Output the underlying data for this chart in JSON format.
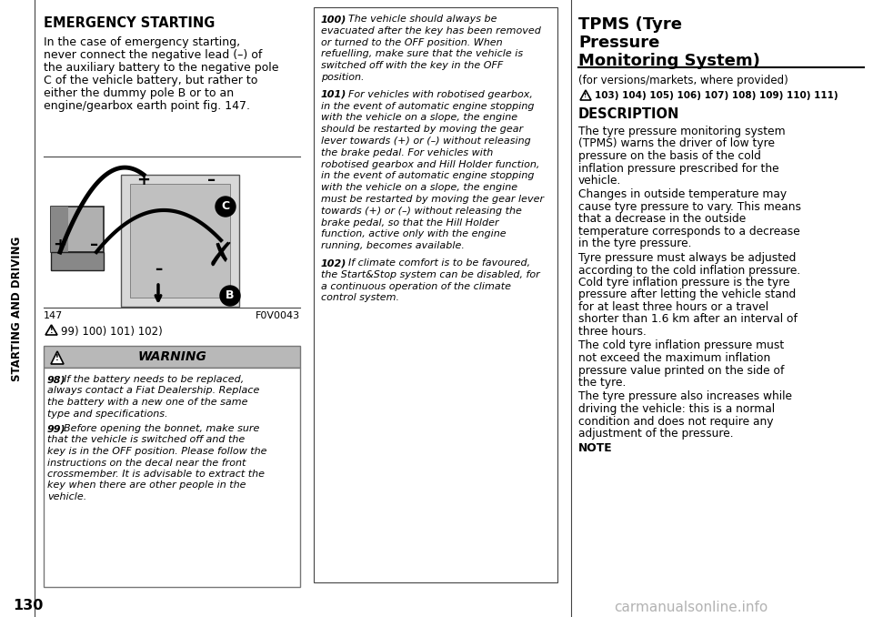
{
  "bg_color": "#ffffff",
  "page_number": "130",
  "watermark": "carmanualsonline.info",
  "sidebar_text": "STARTING AND DRIVING",
  "left_col": {
    "title": "EMERGENCY STARTING",
    "body_lines": [
      "In the case of emergency starting,",
      "never connect the negative lead (–) of",
      "the auxiliary battery to the negative pole",
      "C of the vehicle battery, but rather to",
      "either the dummy pole B or to an",
      "engine/gearbox earth point fig. 147."
    ],
    "fig_label": "147",
    "fig_code": "F0V0043",
    "footnote": "99) 100) 101) 102)",
    "warning_header": "WARNING",
    "warning_98_lines": [
      "98) If the battery needs to be replaced,",
      "always contact a Fiat Dealership. Replace",
      "the battery with a new one of the same",
      "type and specifications."
    ],
    "warning_99_lines": [
      "99) Before opening the bonnet, make sure",
      "that the vehicle is switched off and the",
      "key is in the OFF position. Please follow the",
      "instructions on the decal near the front",
      "crossmember. It is advisable to extract the",
      "key when there are other people in the",
      "vehicle."
    ]
  },
  "middle_col": {
    "text_100_lines": [
      "100) The vehicle should always be",
      "evacuated after the key has been removed",
      "or turned to the OFF position. When",
      "refuelling, make sure that the vehicle is",
      "switched off with the key in the OFF",
      "position."
    ],
    "text_101_lines": [
      "101) For vehicles with robotised gearbox,",
      "in the event of automatic engine stopping",
      "with the vehicle on a slope, the engine",
      "should be restarted by moving the gear",
      "lever towards (+) or (–) without releasing",
      "the brake pedal. For vehicles with",
      "robotised gearbox and Hill Holder function,",
      "in the event of automatic engine stopping",
      "with the vehicle on a slope, the engine",
      "must be restarted by moving the gear lever",
      "towards (+) or (–) without releasing the",
      "brake pedal, so that the Hill Holder",
      "function, active only with the engine",
      "running, becomes available."
    ],
    "text_102_lines": [
      "102) If climate comfort is to be favoured,",
      "the Start&Stop system can be disabled, for",
      "a continuous operation of the climate",
      "control system."
    ]
  },
  "right_col": {
    "title_line1": "TPMS (Tyre",
    "title_line2": "Pressure",
    "title_line3": "Monitoring System)",
    "subtitle": "(for versions/markets, where provided)",
    "footnote_nums": "103) 104) 105) 106) 107) 108) 109) 110) 111)",
    "section": "DESCRIPTION",
    "desc1_lines": [
      "The tyre pressure monitoring system",
      "(TPMS) warns the driver of low tyre",
      "pressure on the basis of the cold",
      "inflation pressure prescribed for the",
      "vehicle."
    ],
    "desc2_lines": [
      "Changes in outside temperature may",
      "cause tyre pressure to vary. This means",
      "that a decrease in the outside",
      "temperature corresponds to a decrease",
      "in the tyre pressure."
    ],
    "desc3_lines": [
      "Tyre pressure must always be adjusted",
      "according to the cold inflation pressure.",
      "Cold tyre inflation pressure is the tyre",
      "pressure after letting the vehicle stand",
      "for at least three hours or a travel",
      "shorter than 1.6 km after an interval of",
      "three hours."
    ],
    "desc4_lines": [
      "The cold tyre inflation pressure must",
      "not exceed the maximum inflation",
      "pressure value printed on the side of",
      "the tyre."
    ],
    "desc5_lines": [
      "The tyre pressure also increases while",
      "driving the vehicle: this is a normal",
      "condition and does not require any",
      "adjustment of the pressure."
    ],
    "note": "NOTE"
  },
  "colors": {
    "black": "#000000",
    "white": "#ffffff",
    "light_gray": "#d0d0d0",
    "warning_bg": "#b8b8b8",
    "warning_border": "#777777",
    "border_line": "#444444"
  }
}
